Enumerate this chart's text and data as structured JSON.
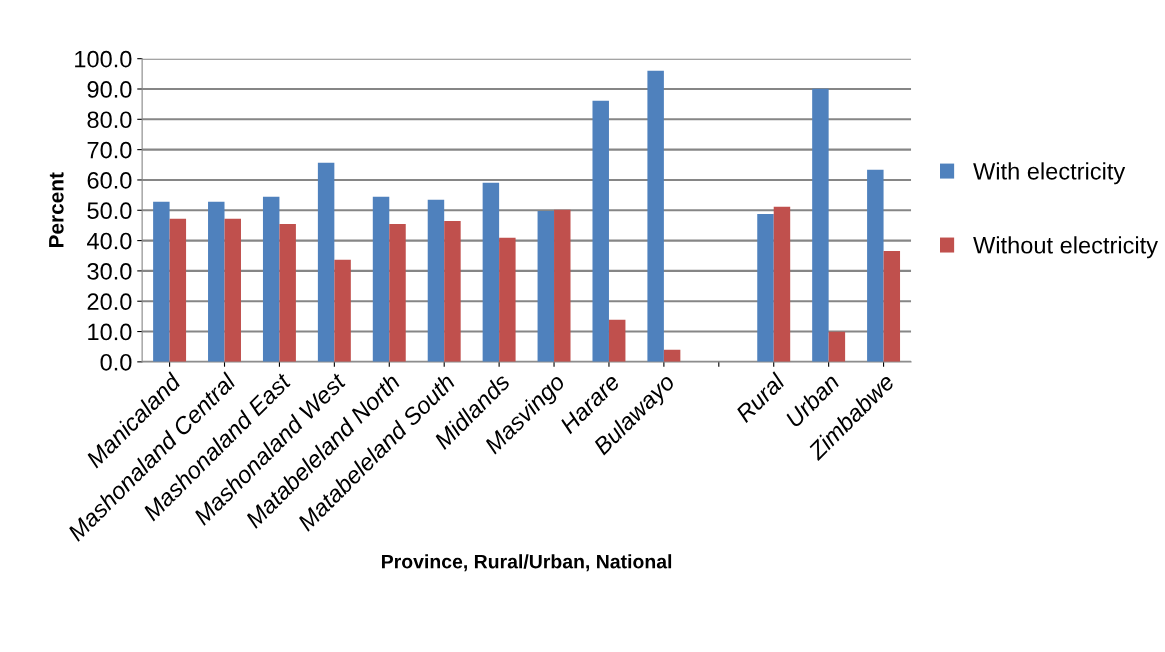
{
  "chart_data": {
    "type": "bar",
    "xlabel": "Province, Rural/Urban, National",
    "ylabel": "Percent",
    "categories": [
      "Manicaland",
      "Mashonaland Central",
      "Mashonaland East",
      "Mashonaland West",
      "Matabeleland North",
      "Matabeleland South",
      "Midlands",
      "Masvingo",
      "Harare",
      "Bulawayo",
      null,
      "Rural",
      "Urban",
      "Zimbabwe"
    ],
    "series": [
      {
        "name": "With electricity",
        "color": "#4f81bd",
        "values": [
          52.8,
          52.8,
          54.5,
          65.7,
          54.5,
          53.5,
          59.1,
          49.8,
          86.1,
          96.0,
          null,
          48.8,
          90.1,
          63.4
        ]
      },
      {
        "name": "Without electricity",
        "color": "#c0504d",
        "values": [
          47.2,
          47.2,
          45.5,
          33.7,
          45.5,
          46.5,
          40.9,
          50.2,
          13.9,
          4.0,
          null,
          51.2,
          9.9,
          36.6
        ]
      }
    ],
    "ylim": [
      0,
      100
    ],
    "yticks": [
      {
        "value": 0,
        "label": "0.0"
      },
      {
        "value": 10,
        "label": "10.0"
      },
      {
        "value": 20,
        "label": "20.0"
      },
      {
        "value": 30,
        "label": "30.0"
      },
      {
        "value": 40,
        "label": "40.0"
      },
      {
        "value": 50,
        "label": "50.0"
      },
      {
        "value": 60,
        "label": "60.0"
      },
      {
        "value": 70,
        "label": "70.0"
      },
      {
        "value": 80,
        "label": "80.0"
      },
      {
        "value": 90,
        "label": "90.0"
      },
      {
        "value": 100,
        "label": "100.0"
      }
    ],
    "grid": "y",
    "legend": "right"
  }
}
